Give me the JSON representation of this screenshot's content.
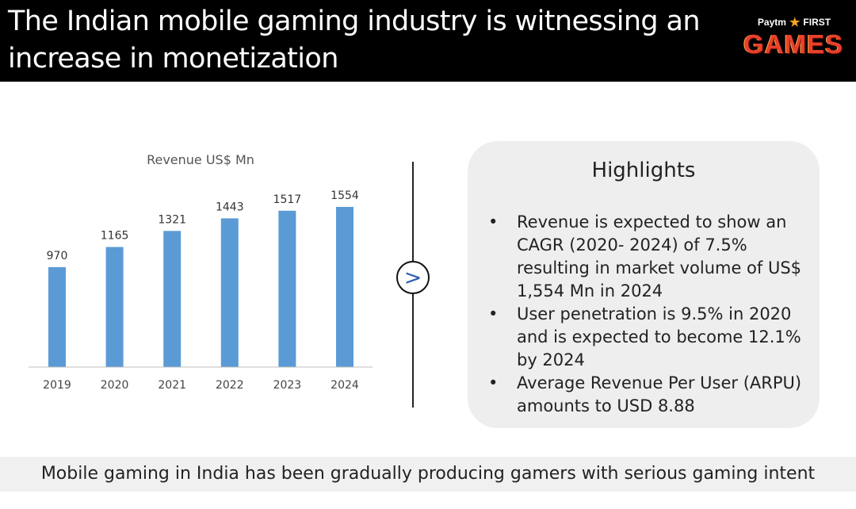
{
  "header": {
    "title": "The Indian mobile gaming industry is witnessing an increase in monetization",
    "logo_top_left": "Paytm",
    "logo_top_right": "FIRST",
    "logo_main": "GAMES"
  },
  "chart_data": {
    "type": "bar",
    "title": "Revenue US$ Mn",
    "categories": [
      "2019",
      "2020",
      "2021",
      "2022",
      "2023",
      "2024"
    ],
    "values": [
      970,
      1165,
      1321,
      1443,
      1517,
      1554
    ],
    "ylim": [
      0,
      2000
    ],
    "xlabel": "",
    "ylabel": "",
    "grid": false,
    "bar_color": "#5b9bd5"
  },
  "highlights": {
    "title": "Highlights",
    "items": [
      "Revenue is expected to show an CAGR (2020- 2024) of 7.5% resulting in market volume of US$ 1,554 Mn in 2024",
      "User penetration is 9.5% in 2020 and is expected to become 12.1% by 2024",
      "Average Revenue Per User (ARPU) amounts to USD 8.88"
    ]
  },
  "arrow_symbol": ">",
  "footer": {
    "text": "Mobile gaming in India has been gradually producing gamers with serious gaming intent"
  }
}
